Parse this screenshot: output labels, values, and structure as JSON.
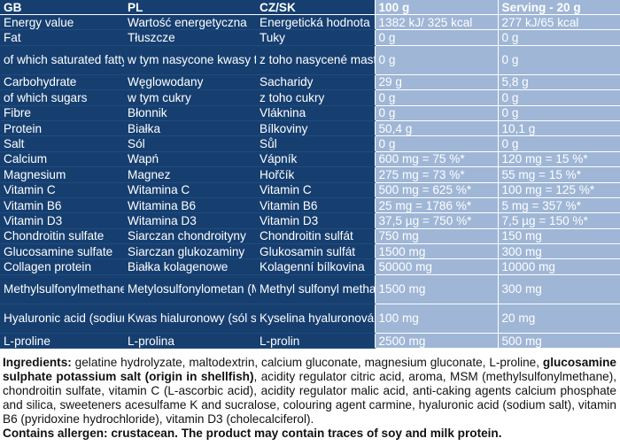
{
  "header": {
    "col_gb": "GB",
    "col_pl": "PL",
    "col_czsk": "CZ/SK",
    "col_100g": "100 g",
    "col_serving": "Serving - 20 g"
  },
  "rows": [
    {
      "gb": "Energy value",
      "pl": "Wartość energetyczna",
      "cz": "Energetická hodnota",
      "v100": "1382 kJ/ 325 kcal",
      "vserv": "277 kJ/65 kcal"
    },
    {
      "gb": "Fat",
      "pl": "Tłuszcze",
      "cz": "Tuky",
      "v100": "0 g",
      "vserv": "0 g"
    },
    {
      "gb": "   of which saturated\n   fatty acids",
      "pl": "   w tym nasycone\n   kwasy tłuszczowe",
      "cz": "   z toho nasycené\n   mastné kyseliny",
      "v100": "0 g",
      "vserv": "0 g"
    },
    {
      "gb": "Carbohydrate",
      "pl": "Węglowodany",
      "cz": "Sacharidy",
      "v100": "29 g",
      "vserv": "5,8 g"
    },
    {
      "gb": "   of which sugars",
      "pl": "   w tym cukry",
      "cz": "   z toho cukry",
      "v100": "0 g",
      "vserv": "0 g"
    },
    {
      "gb": "Fibre",
      "pl": "Błonnik",
      "cz": "Vláknina",
      "v100": "0 g",
      "vserv": "0 g"
    },
    {
      "gb": "Protein",
      "pl": "Białka",
      "cz": "Bílkoviny",
      "v100": "50,4 g",
      "vserv": "10,1 g"
    },
    {
      "gb": "Salt",
      "pl": "Sól",
      "cz": "Sůl",
      "v100": "0 g",
      "vserv": "0 g"
    },
    {
      "gb": "Calcium",
      "pl": "Wapń",
      "cz": "Vápník",
      "v100": "600 mg = 75 %*",
      "vserv": "120 mg = 15 %*"
    },
    {
      "gb": "Magnesium",
      "pl": "Magnez",
      "cz": "Hořčík",
      "v100": "275 mg = 73 %*",
      "vserv": "55 mg = 15 %*"
    },
    {
      "gb": "Vitamin C",
      "pl": "Witamina C",
      "cz": "Vitamin C",
      "v100": "500 mg = 625 %*",
      "vserv": "100 mg = 125 %*"
    },
    {
      "gb": "Vitamin B6",
      "pl": "Witamina B6",
      "cz": "Vitamin B6",
      "v100": "25 mg = 1786 %*",
      "vserv": "5 mg = 357 %*"
    },
    {
      "gb": "Vitamin D3",
      "pl": "Witamina D3",
      "cz": "Vitamin D3",
      "v100": "37,5 µg = 750 %*",
      "vserv": "7,5 µg = 150 %*"
    },
    {
      "gb": "Chondroitin sulfate",
      "pl": "Siarczan chondroityny",
      "cz": "Chondroitin sulfát",
      "v100": "750 mg",
      "vserv": "150 mg"
    },
    {
      "gb": "Glucosamine sulfate",
      "pl": "Siarczan glukozaminy",
      "cz": "Glukosamin sulfát",
      "v100": "1500 mg",
      "vserv": "300 mg"
    },
    {
      "gb": "Collagen protein",
      "pl": "Białka kolagenowe",
      "cz": "Kolagenní bílkovina",
      "v100": "50000 mg",
      "vserv": "10000 mg"
    },
    {
      "gb": "Methylsulfonylmethane\n(MSM)",
      "pl": "Metylosulfonylometan\n(MSM)",
      "cz": "Methyl sulfonyl\nmethan (MSM)",
      "v100": "1500 mg",
      "vserv": "300 mg"
    },
    {
      "gb": "Hyaluronic acid\n(sodium salt)",
      "pl": "Kwas hialuronowy\n(sól sodowa)",
      "cz": "Kyselina hyaluronová\n(sodná sůl)",
      "v100": "100 mg",
      "vserv": "20 mg"
    },
    {
      "gb": "L-proline",
      "pl": "L-prolina",
      "cz": "L-prolin",
      "v100": "2500 mg",
      "vserv": "500 mg"
    }
  ],
  "ingredients": {
    "label": "Ingredients:",
    "text1": " gelatine hydrolyzate, maltodextrin, calcium gluconate, magnesium gluconate, L-proline, ",
    "bold_part": "glucosamine sulphate potassium salt (origin in shellfish)",
    "text2": ", acidity regulator citric acid, aroma, MSM (methylsulfonylmethane), chondroitin sulfate, vitamin C (L-ascorbic acid), acidity regulator malic acid, anti-caking agents calcium phosphate and silica, sweeteners acesulfame K and sucralose, colouring agent carmine, hyaluronic acid (sodium salt), vitamin B6 (pyridoxine hydrochloride), vitamin D3 (cholecalciferol).",
    "allergen": "Contains allergen: crustacean. The product may contain traces of soy and milk protein."
  },
  "colors": {
    "left_bg": "#163f70",
    "right_bg": "#9fb6d6"
  }
}
